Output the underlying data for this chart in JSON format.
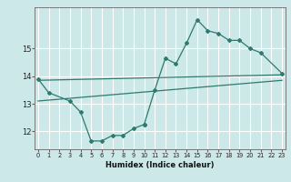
{
  "xlabel": "Humidex (Indice chaleur)",
  "bg_color": "#cde8e8",
  "grid_color": "#ffffff",
  "line_color": "#2d7a6e",
  "x_values": [
    0,
    1,
    2,
    3,
    4,
    5,
    6,
    7,
    8,
    9,
    10,
    11,
    12,
    13,
    14,
    15,
    16,
    17,
    18,
    19,
    20,
    21,
    22,
    23
  ],
  "line1_x": [
    0,
    1,
    3,
    4,
    5,
    6,
    7,
    8,
    9,
    10
  ],
  "line1_y": [
    13.9,
    13.4,
    13.1,
    12.7,
    11.65,
    11.65,
    11.85,
    11.85,
    12.1,
    12.25
  ],
  "line2_x": [
    10,
    11,
    12,
    13,
    14,
    15,
    16,
    17,
    18,
    19,
    20,
    21,
    23
  ],
  "line2_y": [
    12.25,
    13.5,
    14.65,
    14.45,
    15.2,
    16.05,
    15.65,
    15.55,
    15.3,
    15.3,
    15.0,
    14.85,
    14.1
  ],
  "trend1_x": [
    0,
    23
  ],
  "trend1_y": [
    13.85,
    14.05
  ],
  "trend2_x": [
    0,
    23
  ],
  "trend2_y": [
    13.1,
    13.85
  ],
  "ylim": [
    11.35,
    16.5
  ],
  "xlim": [
    -0.3,
    23.3
  ],
  "yticks": [
    12,
    13,
    14,
    15
  ],
  "xticks": [
    0,
    1,
    2,
    3,
    4,
    5,
    6,
    7,
    8,
    9,
    10,
    11,
    12,
    13,
    14,
    15,
    16,
    17,
    18,
    19,
    20,
    21,
    22,
    23
  ]
}
